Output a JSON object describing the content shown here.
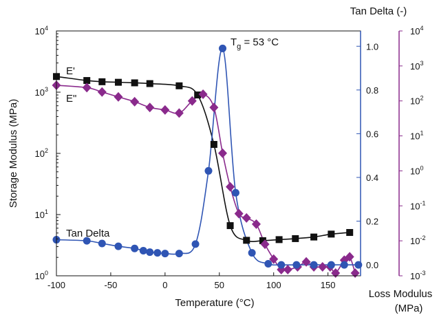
{
  "chart_data": {
    "type": "scatter",
    "x_axis": {
      "label": "Temperature (°C)",
      "range": [
        -100,
        180
      ],
      "ticks": [
        -100,
        -50,
        0,
        50,
        100,
        150
      ],
      "tick_labels": [
        "-100",
        "-50",
        "0",
        "50",
        "100",
        "150"
      ]
    },
    "y_axes": {
      "left": {
        "label": "Storage Modulus (MPa)",
        "scale": "log",
        "range": [
          1,
          10000
        ],
        "ticks": [
          1,
          10,
          100,
          1000,
          10000
        ],
        "tick_labels": [
          [
            "10",
            "0"
          ],
          [
            "10",
            "1"
          ],
          [
            "10",
            "2"
          ],
          [
            "10",
            "3"
          ],
          [
            "10",
            "4"
          ]
        ],
        "color": "#111111"
      },
      "right_tan": {
        "label": "Tan Delta (-)",
        "scale": "linear",
        "range": [
          -0.05,
          1.07
        ],
        "ticks": [
          0.0,
          0.2,
          0.4,
          0.6,
          0.8,
          1.0
        ],
        "tick_labels": [
          "0.0",
          "0.2",
          "0.4",
          "0.6",
          "0.8",
          "1.0"
        ],
        "color": "#2f55b4"
      },
      "right_loss": {
        "label": "Loss Modulus (MPa)",
        "scale": "log",
        "range": [
          0.001,
          10000
        ],
        "ticks": [
          0.001,
          0.01,
          0.1,
          1,
          10,
          100,
          1000,
          10000
        ],
        "tick_labels": [
          [
            "10",
            "-3"
          ],
          [
            "10",
            "-2"
          ],
          [
            "10",
            "-1"
          ],
          [
            "10",
            "0"
          ],
          [
            "10",
            "1"
          ],
          [
            "10",
            "2"
          ],
          [
            "10",
            "3"
          ],
          [
            "10",
            "4"
          ]
        ],
        "color": "#8a2a8c"
      }
    },
    "series": [
      {
        "name": "E'",
        "axis": "left",
        "color": "#111111",
        "marker": "square",
        "x": [
          -100,
          -72,
          -58,
          -43,
          -28,
          -14,
          13,
          30,
          45,
          60,
          75,
          90,
          105,
          120,
          137,
          153,
          170
        ],
        "y": [
          1800,
          1550,
          1480,
          1450,
          1420,
          1380,
          1270,
          900,
          140,
          6.6,
          3.8,
          3.75,
          3.9,
          4.05,
          4.3,
          4.8,
          5.1
        ]
      },
      {
        "name": "E\"",
        "axis": "right_loss",
        "color": "#8a2a8c",
        "marker": "diamond",
        "x": [
          -100,
          -72,
          -58,
          -43,
          -28,
          -14,
          0,
          13,
          25,
          35,
          45,
          53,
          60,
          68,
          75,
          84,
          92,
          100,
          107,
          113,
          122,
          130,
          137,
          145,
          152,
          157,
          165,
          170,
          175
        ],
        "y": [
          280,
          240,
          180,
          130,
          95,
          65,
          55,
          45,
          100,
          155,
          65,
          3.2,
          0.35,
          0.06,
          0.045,
          0.03,
          0.008,
          0.003,
          0.0015,
          0.0015,
          0.0018,
          0.0025,
          0.0018,
          0.0018,
          0.0018,
          0.0012,
          0.0028,
          0.0035,
          0.0012
        ]
      },
      {
        "name": "Tan Delta",
        "axis": "right_tan",
        "color": "#2f55b4",
        "marker": "circle",
        "x": [
          -100,
          -72,
          -58,
          -43,
          -28,
          -20,
          -14,
          -7,
          0,
          13,
          28,
          40,
          53,
          65,
          80,
          95,
          107,
          121,
          137,
          153,
          165,
          178
        ],
        "y": [
          0.115,
          0.11,
          0.098,
          0.085,
          0.075,
          0.065,
          0.058,
          0.055,
          0.052,
          0.052,
          0.095,
          0.43,
          0.99,
          0.33,
          0.055,
          0.005,
          0.0,
          0.0,
          0.0,
          0.0,
          0.0,
          0.0
        ]
      }
    ],
    "annotations": {
      "tg_main": "T",
      "tg_sub": "g",
      "tg_rest": " = 53 °C",
      "e_prime": "E'",
      "e_double_prime": "E\"",
      "tan_delta": "Tan Delta"
    }
  }
}
